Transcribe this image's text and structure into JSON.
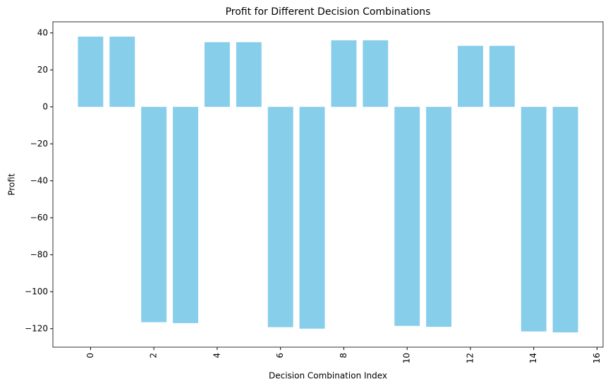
{
  "chart_data": {
    "type": "bar",
    "title": "Profit for Different Decision Combinations",
    "x_label": "Decision Combination Index",
    "y_label": "Profit",
    "x": [
      0,
      1,
      2,
      3,
      4,
      5,
      6,
      7,
      8,
      9,
      10,
      11,
      12,
      13,
      14,
      15
    ],
    "values": [
      38,
      38,
      -116.5,
      -117,
      35,
      35,
      -119.2,
      -120,
      36,
      36,
      -118.5,
      -119,
      33,
      33,
      -121.5,
      -122
    ],
    "color": "#87ceeb",
    "xlim": [
      -1.19,
      16.19
    ],
    "xticks": [
      0,
      2,
      4,
      6,
      8,
      10,
      12,
      14,
      16
    ],
    "ylim": [
      -130,
      46
    ],
    "yticks": [
      {
        "value": -120,
        "label": "−120"
      },
      {
        "value": -100,
        "label": "−100"
      },
      {
        "value": -80,
        "label": "−80"
      },
      {
        "value": -60,
        "label": "−60"
      },
      {
        "value": -40,
        "label": "−40"
      },
      {
        "value": -20,
        "label": "−20"
      },
      0,
      20,
      40
    ],
    "grid": false
  }
}
